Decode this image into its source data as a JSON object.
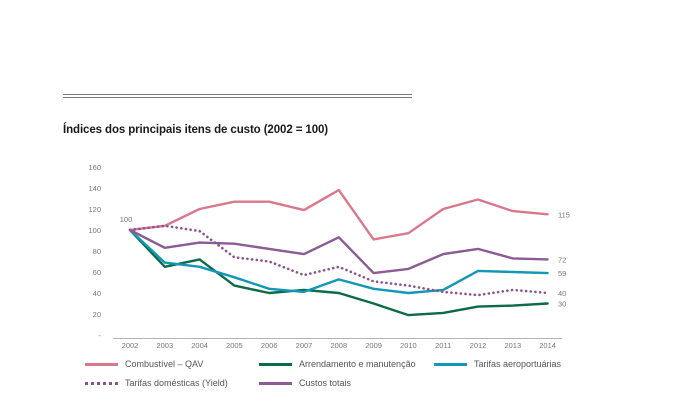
{
  "chart_data": {
    "type": "line",
    "title": "Índices dos principais itens de custo (2002 = 100)",
    "xlabel": "",
    "ylabel": "",
    "ylim": [
      0,
      160
    ],
    "yticks": [
      {
        "value": 160,
        "label": "160"
      },
      {
        "value": 140,
        "label": "140"
      },
      {
        "value": 120,
        "label": "120"
      },
      {
        "value": 100,
        "label": "100"
      },
      {
        "value": 80,
        "label": "80"
      },
      {
        "value": 60,
        "label": "60"
      },
      {
        "value": 40,
        "label": "40"
      },
      {
        "value": 20,
        "label": "20"
      },
      {
        "value": 0,
        "label": "-"
      }
    ],
    "grid": false,
    "legend_position": "bottom",
    "categories": [
      "2002",
      "2003",
      "2004",
      "2005",
      "2006",
      "2007",
      "2008",
      "2009",
      "2010",
      "2011",
      "2012",
      "2013",
      "2014"
    ],
    "start_label": "100",
    "series": [
      {
        "name": "Combustível – QAV",
        "color": "#d9788a",
        "style": "solid",
        "end_label": "115",
        "values": [
          100,
          104,
          120,
          127,
          127,
          119,
          138,
          91,
          97,
          120,
          129,
          118,
          115
        ]
      },
      {
        "name": "Arrendamento e manutenção",
        "color": "#0b6b46",
        "style": "solid",
        "end_label": "30",
        "values": [
          100,
          65,
          72,
          47,
          40,
          43,
          40,
          30,
          19,
          21,
          27,
          28,
          30
        ]
      },
      {
        "name": "Tarifas aeroportuárias",
        "color": "#1297b8",
        "style": "solid",
        "end_label": "59",
        "values": [
          100,
          69,
          65,
          55,
          44,
          41,
          53,
          44,
          40,
          43,
          61,
          60,
          59
        ]
      },
      {
        "name": "Tarifas domésticas (Yield)",
        "color": "#8c4f8e",
        "style": "dotted",
        "end_label": "40",
        "values": [
          100,
          104,
          99,
          74,
          70,
          57,
          65,
          51,
          47,
          41,
          38,
          43,
          40
        ]
      },
      {
        "name": "Custos totais",
        "color": "#8c5a96",
        "style": "solid",
        "end_label": "72",
        "values": [
          100,
          83,
          88,
          87,
          82,
          77,
          93,
          59,
          63,
          77,
          82,
          73,
          72
        ]
      }
    ]
  }
}
